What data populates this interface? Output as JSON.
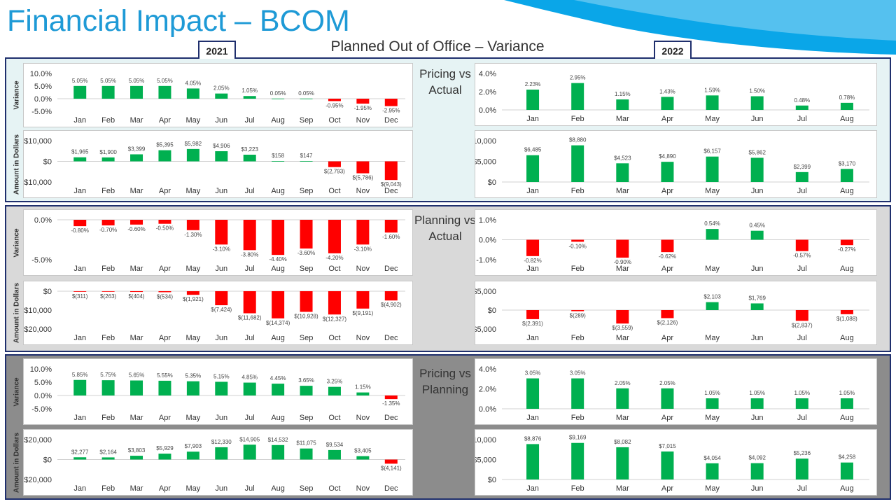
{
  "header": {
    "title": "Financial Impact – BCOM",
    "subtitle": "Planned Out of Office – Variance",
    "year_left": "2021",
    "year_right": "2022"
  },
  "colors": {
    "accent": "#1e9ad6",
    "frame": "#1f2f6d",
    "positive": "#00b050",
    "negative": "#ff0000"
  },
  "sections": [
    {
      "label_lines": [
        "Pricing vs",
        "Actual"
      ]
    },
    {
      "label_lines": [
        "Planning vs",
        "Actual"
      ]
    },
    {
      "label_lines": [
        "Pricing vs",
        "Planning"
      ]
    }
  ],
  "y_axis_labels": {
    "variance": "Variance",
    "dollars": "Amount in Dollars"
  },
  "chart_data": [
    {
      "id": "pa-2021-var",
      "type": "bar",
      "categories": [
        "Jan",
        "Feb",
        "Mar",
        "Apr",
        "May",
        "Jun",
        "Jul",
        "Aug",
        "Sep",
        "Oct",
        "Nov",
        "Dec"
      ],
      "values": [
        5.05,
        5.05,
        5.05,
        5.05,
        4.05,
        2.05,
        1.05,
        0.05,
        0.05,
        -0.95,
        -1.95,
        -2.95
      ],
      "labels": [
        "5.05%",
        "5.05%",
        "5.05%",
        "5.05%",
        "4.05%",
        "2.05%",
        "1.05%",
        "0.05%",
        "0.05%",
        "-0.95%",
        "-1.95%",
        "-2.95%"
      ],
      "ylim": [
        -5,
        10
      ],
      "yticks": [
        10,
        5,
        0,
        -5
      ],
      "ytick_labels": [
        "10.0%",
        "5.0%",
        "0.0%",
        "-5.0%"
      ],
      "ylabel": "Variance"
    },
    {
      "id": "pa-2021-amt",
      "type": "bar",
      "categories": [
        "Jan",
        "Feb",
        "Mar",
        "Apr",
        "May",
        "Jun",
        "Jul",
        "Aug",
        "Sep",
        "Oct",
        "Nov",
        "Dec"
      ],
      "values": [
        1965,
        1900,
        3399,
        5395,
        5982,
        4906,
        3223,
        158,
        147,
        -2793,
        -5786,
        -9043
      ],
      "labels": [
        "$1,965",
        "$1,900",
        "$3,399",
        "$5,395",
        "$5,982",
        "$4,906",
        "$3,223",
        "$158",
        "$147",
        "$(2,793)",
        "$(5,786)",
        "$(9,043)"
      ],
      "ylim": [
        -10000,
        10000
      ],
      "yticks": [
        10000,
        0,
        -10000
      ],
      "ytick_labels": [
        "$10,000",
        "$0",
        "-$10,000"
      ],
      "ylabel": "Amount in Dollars"
    },
    {
      "id": "pa-2022-var",
      "type": "bar",
      "categories": [
        "Jan",
        "Feb",
        "Mar",
        "Apr",
        "May",
        "Jun",
        "Jul",
        "Aug"
      ],
      "values": [
        2.23,
        2.95,
        1.15,
        1.43,
        1.59,
        1.5,
        0.48,
        0.78
      ],
      "labels": [
        "2.23%",
        "2.95%",
        "1.15%",
        "1.43%",
        "1.59%",
        "1.50%",
        "0.48%",
        "0.78%"
      ],
      "ylim": [
        0,
        4
      ],
      "yticks": [
        4,
        2,
        0
      ],
      "ytick_labels": [
        "4.0%",
        "2.0%",
        "0.0%"
      ]
    },
    {
      "id": "pa-2022-amt",
      "type": "bar",
      "categories": [
        "Jan",
        "Feb",
        "Mar",
        "Apr",
        "May",
        "Jun",
        "Jul",
        "Aug"
      ],
      "values": [
        6485,
        8880,
        4523,
        4890,
        6157,
        5862,
        2399,
        3170
      ],
      "labels": [
        "$6,485",
        "$8,880",
        "$4,523",
        "$4,890",
        "$6,157",
        "$5,862",
        "$2,399",
        "$3,170"
      ],
      "ylim": [
        0,
        10000
      ],
      "yticks": [
        10000,
        5000,
        0
      ],
      "ytick_labels": [
        "$10,000",
        "$5,000",
        "$0"
      ]
    },
    {
      "id": "pla-2021-var",
      "type": "bar",
      "categories": [
        "Jan",
        "Feb",
        "Mar",
        "Apr",
        "May",
        "Jun",
        "Jul",
        "Aug",
        "Sep",
        "Oct",
        "Nov",
        "Dec"
      ],
      "values": [
        -0.8,
        -0.7,
        -0.6,
        -0.5,
        -1.3,
        -3.1,
        -3.8,
        -4.4,
        -3.6,
        -4.2,
        -3.1,
        -1.6
      ],
      "labels": [
        "-0.80%",
        "-0.70%",
        "-0.60%",
        "-0.50%",
        "-1.30%",
        "-3.10%",
        "-3.80%",
        "-4.40%",
        "-3.60%",
        "-4.20%",
        "-3.10%",
        "-1.60%"
      ],
      "ylim": [
        -5,
        0
      ],
      "yticks": [
        0,
        -5
      ],
      "ytick_labels": [
        "0.0%",
        "-5.0%"
      ],
      "ylabel": "Variance"
    },
    {
      "id": "pla-2021-amt",
      "type": "bar",
      "categories": [
        "Jan",
        "Feb",
        "Mar",
        "Apr",
        "May",
        "Jun",
        "Jul",
        "Aug",
        "Sep",
        "Oct",
        "Nov",
        "Dec"
      ],
      "values": [
        -311,
        -263,
        -404,
        -534,
        -1921,
        -7424,
        -11682,
        -14374,
        -10928,
        -12327,
        -9191,
        -4902
      ],
      "labels": [
        "$(311)",
        "$(263)",
        "$(404)",
        "$(534)",
        "$(1,921)",
        "$(7,424)",
        "$(11,682)",
        "$(14,374)",
        "$(10,928)",
        "$(12,327)",
        "$(9,191)",
        "$(4,902)"
      ],
      "ylim": [
        -20000,
        0
      ],
      "yticks": [
        0,
        -10000,
        -20000
      ],
      "ytick_labels": [
        "$0",
        "-$10,000",
        "-$20,000"
      ],
      "ylabel": "Amount in Dollars"
    },
    {
      "id": "pla-2022-var",
      "type": "bar",
      "categories": [
        "Jan",
        "Feb",
        "Mar",
        "Apr",
        "May",
        "Jun",
        "Jul",
        "Aug"
      ],
      "values": [
        -0.82,
        -0.1,
        -0.9,
        -0.62,
        0.54,
        0.45,
        -0.57,
        -0.27
      ],
      "labels": [
        "-0.82%",
        "-0.10%",
        "-0.90%",
        "-0.62%",
        "0.54%",
        "0.45%",
        "-0.57%",
        "-0.27%"
      ],
      "ylim": [
        -1,
        1
      ],
      "yticks": [
        1,
        0,
        -1
      ],
      "ytick_labels": [
        "1.0%",
        "0.0%",
        "-1.0%"
      ]
    },
    {
      "id": "pla-2022-amt",
      "type": "bar",
      "categories": [
        "Jan",
        "Feb",
        "Mar",
        "Apr",
        "May",
        "Jun",
        "Jul",
        "Aug"
      ],
      "values": [
        -2391,
        -289,
        -3559,
        -2126,
        2103,
        1769,
        -2837,
        -1088
      ],
      "labels": [
        "$(2,391)",
        "$(289)",
        "$(3,559)",
        "$(2,126)",
        "$2,103",
        "$1,769",
        "$(2,837)",
        "$(1,088)"
      ],
      "ylim": [
        -5000,
        5000
      ],
      "yticks": [
        5000,
        0,
        -5000
      ],
      "ytick_labels": [
        "$5,000",
        "$0",
        "-$5,000"
      ]
    },
    {
      "id": "pp-2021-var",
      "type": "bar",
      "categories": [
        "Jan",
        "Feb",
        "Mar",
        "Apr",
        "May",
        "Jun",
        "Jul",
        "Aug",
        "Sep",
        "Oct",
        "Nov",
        "Dec"
      ],
      "values": [
        5.85,
        5.75,
        5.65,
        5.55,
        5.35,
        5.15,
        4.85,
        4.45,
        3.65,
        3.25,
        1.15,
        -1.35
      ],
      "labels": [
        "5.85%",
        "5.75%",
        "5.65%",
        "5.55%",
        "5.35%",
        "5.15%",
        "4.85%",
        "4.45%",
        "3.65%",
        "3.25%",
        "1.15%",
        "-1.35%"
      ],
      "ylim": [
        -5,
        10
      ],
      "yticks": [
        10,
        5,
        0,
        -5
      ],
      "ytick_labels": [
        "10.0%",
        "5.0%",
        "0.0%",
        "-5.0%"
      ],
      "ylabel": "Variance"
    },
    {
      "id": "pp-2021-amt",
      "type": "bar",
      "categories": [
        "Jan",
        "Feb",
        "Mar",
        "Apr",
        "May",
        "Jun",
        "Jul",
        "Aug",
        "Sep",
        "Oct",
        "Nov",
        "Dec"
      ],
      "values": [
        2277,
        2164,
        3803,
        5929,
        7903,
        12330,
        14905,
        14532,
        11075,
        9534,
        3405,
        -4141
      ],
      "labels": [
        "$2,277",
        "$2,164",
        "$3,803",
        "$5,929",
        "$7,903",
        "$12,330",
        "$14,905",
        "$14,532",
        "$11,075",
        "$9,534",
        "$3,405",
        "$(4,141)"
      ],
      "ylim": [
        -20000,
        20000
      ],
      "yticks": [
        20000,
        0,
        -20000
      ],
      "ytick_labels": [
        "$20,000",
        "$0",
        "-$20,000"
      ],
      "ylabel": "Amount in Dollars"
    },
    {
      "id": "pp-2022-var",
      "type": "bar",
      "categories": [
        "Jan",
        "Feb",
        "Mar",
        "Apr",
        "May",
        "Jun",
        "Jul",
        "Aug"
      ],
      "values": [
        3.05,
        3.05,
        2.05,
        2.05,
        1.05,
        1.05,
        1.05,
        1.05
      ],
      "labels": [
        "3.05%",
        "3.05%",
        "2.05%",
        "2.05%",
        "1.05%",
        "1.05%",
        "1.05%",
        "1.05%"
      ],
      "ylim": [
        0,
        4
      ],
      "yticks": [
        4,
        2,
        0
      ],
      "ytick_labels": [
        "4.0%",
        "2.0%",
        "0.0%"
      ]
    },
    {
      "id": "pp-2022-amt",
      "type": "bar",
      "categories": [
        "Jan",
        "Feb",
        "Mar",
        "Apr",
        "May",
        "Jun",
        "Jul",
        "Aug"
      ],
      "values": [
        8876,
        9169,
        8082,
        7015,
        4054,
        4092,
        5236,
        4258
      ],
      "labels": [
        "$8,876",
        "$9,169",
        "$8,082",
        "$7,015",
        "$4,054",
        "$4,092",
        "$5,236",
        "$4,258"
      ],
      "ylim": [
        0,
        10000
      ],
      "yticks": [
        10000,
        5000,
        0
      ],
      "ytick_labels": [
        "$10,000",
        "$5,000",
        "$0"
      ]
    }
  ]
}
